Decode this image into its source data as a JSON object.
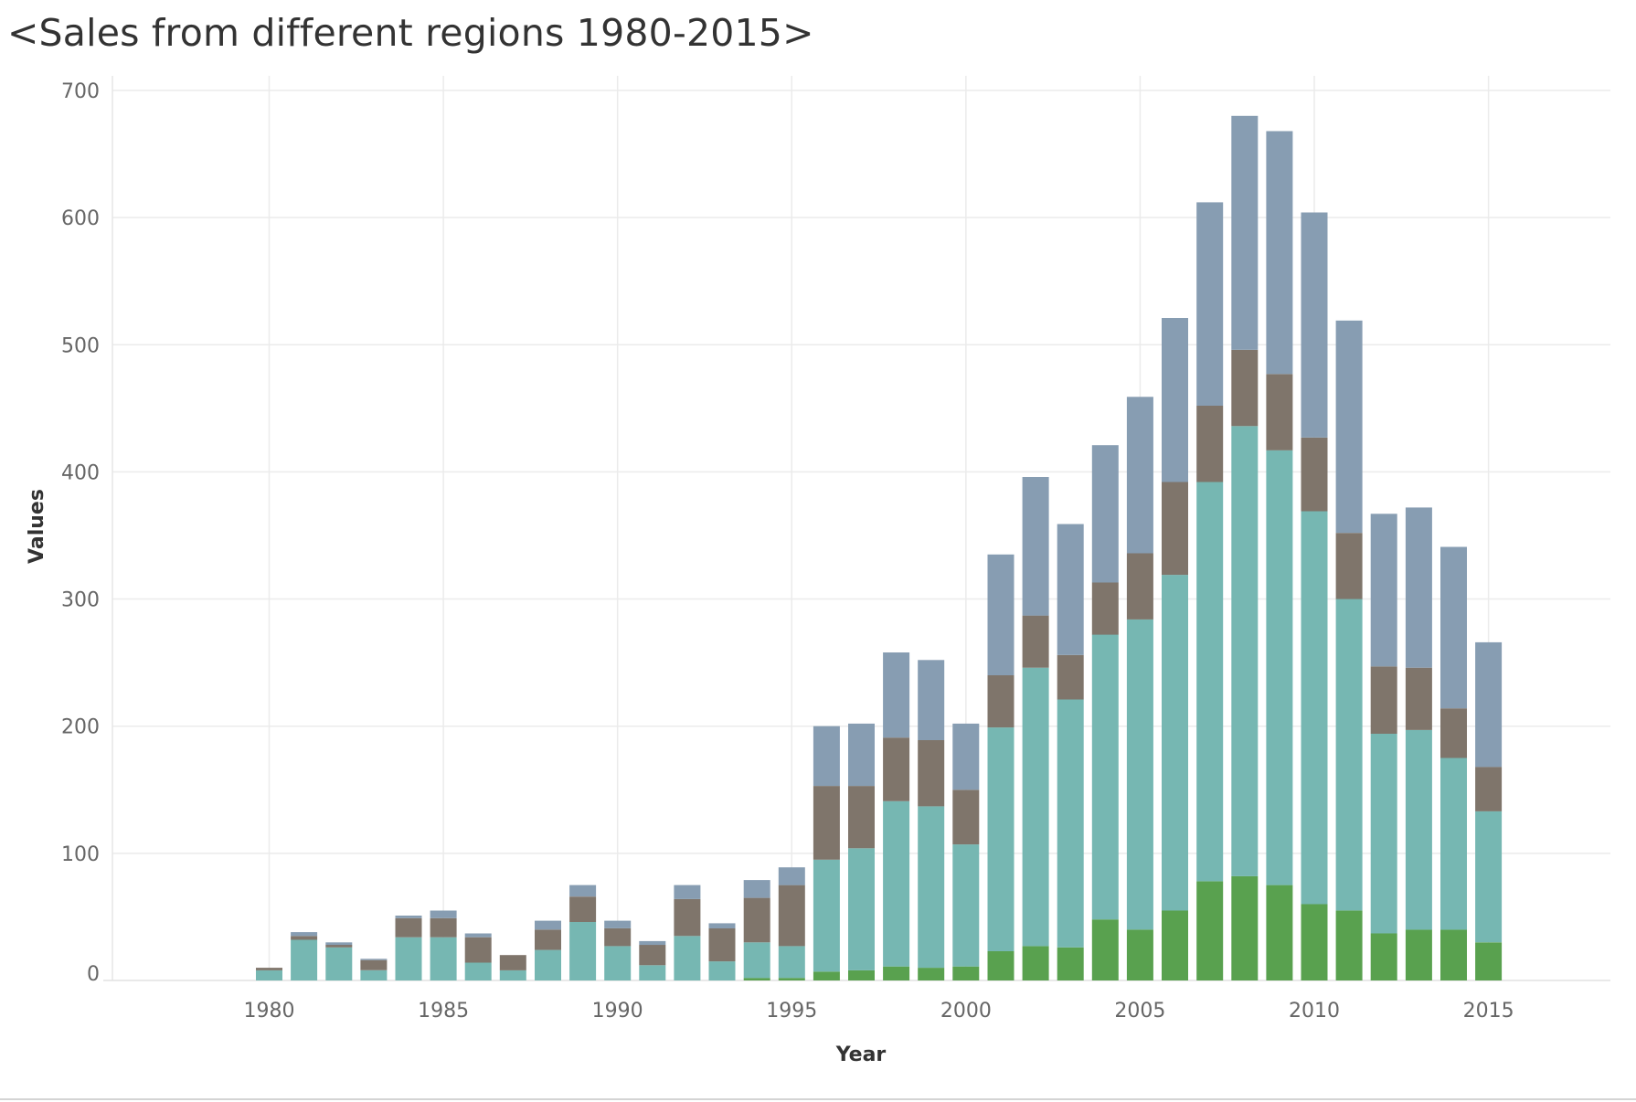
{
  "chart_data": {
    "type": "bar",
    "stacked": true,
    "title": "<Sales from different regions 1980-2015>",
    "xlabel": "Year",
    "ylabel": "Values",
    "x_tick_labels": [
      "1980",
      "1985",
      "1990",
      "1995",
      "2000",
      "2005",
      "2010",
      "2015"
    ],
    "y_tick_labels": [
      "0",
      "100",
      "200",
      "300",
      "400",
      "500",
      "600",
      "700"
    ],
    "xlim": [
      1975.5,
      2018.5
    ],
    "ylim": [
      0,
      710
    ],
    "grid": true,
    "legend": "none",
    "colors": [
      "#59a14f",
      "#76b7b2",
      "#7f756b",
      "#879db2"
    ],
    "categories": [
      1980,
      1981,
      1982,
      1983,
      1984,
      1985,
      1986,
      1987,
      1988,
      1989,
      1990,
      1991,
      1992,
      1993,
      1994,
      1995,
      1996,
      1997,
      1998,
      1999,
      2000,
      2001,
      2002,
      2003,
      2004,
      2005,
      2006,
      2007,
      2008,
      2009,
      2010,
      2011,
      2012,
      2013,
      2014,
      2015
    ],
    "series": [
      {
        "values": [
          0,
          0,
          0,
          0,
          0,
          0,
          0,
          0,
          0,
          0,
          0,
          0,
          0,
          0,
          2,
          2,
          7,
          8,
          11,
          10,
          11,
          23,
          27,
          26,
          48,
          40,
          55,
          78,
          82,
          75,
          60,
          55,
          37,
          40,
          40,
          30
        ]
      },
      {
        "values": [
          8,
          32,
          26,
          8,
          34,
          34,
          14,
          8,
          24,
          46,
          27,
          12,
          35,
          15,
          28,
          25,
          88,
          96,
          130,
          127,
          96,
          176,
          219,
          195,
          224,
          244,
          264,
          314,
          354,
          342,
          309,
          245,
          157,
          157,
          135,
          103
        ]
      },
      {
        "values": [
          2,
          3,
          2,
          8,
          15,
          15,
          20,
          12,
          16,
          20,
          14,
          16,
          29,
          26,
          35,
          48,
          58,
          49,
          50,
          52,
          43,
          41,
          41,
          35,
          41,
          52,
          73,
          60,
          60,
          60,
          58,
          52,
          53,
          49,
          39,
          35
        ]
      },
      {
        "values": [
          0,
          3,
          2,
          1,
          2,
          6,
          3,
          0,
          7,
          9,
          6,
          3,
          11,
          4,
          14,
          14,
          47,
          49,
          67,
          63,
          52,
          95,
          109,
          103,
          108,
          123,
          129,
          160,
          184,
          191,
          177,
          167,
          120,
          126,
          127,
          98
        ]
      }
    ]
  }
}
